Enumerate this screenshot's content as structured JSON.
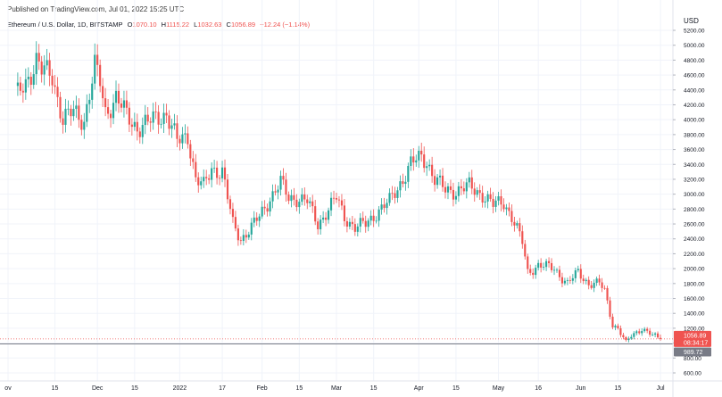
{
  "header": {
    "published": "Published on TradingView.com, Jul 01, 2022 15:25 UTC",
    "symbol": "Ethereum / U.S. Dollar, 1D, BITSTAMP",
    "open_label": "O",
    "open_value": "1070.10",
    "high_label": "H",
    "high_value": "1115.22",
    "low_label": "L",
    "low_value": "1032.63",
    "close_label": "C",
    "close_value": "1056.89",
    "change": "−12.24 (−1.14%)"
  },
  "price_scale": {
    "currency": "USD",
    "last_price": "1056.89",
    "countdown": "08:34:17",
    "line_price": "989.72",
    "ticks": [
      "5200.00",
      "5000.00",
      "4800.00",
      "4600.00",
      "4400.00",
      "4200.00",
      "4000.00",
      "3800.00",
      "3600.00",
      "3400.00",
      "3200.00",
      "3000.00",
      "2800.00",
      "2600.00",
      "2400.00",
      "2200.00",
      "2000.00",
      "1800.00",
      "1600.00",
      "1400.00",
      "1200.00",
      "1000.00",
      "800.00",
      "600.00"
    ]
  },
  "time_scale": {
    "labels": [
      "ov",
      "15",
      "Dec",
      "15",
      "2022",
      "17",
      "Feb",
      "15",
      "Mar",
      "15",
      "Apr",
      "15",
      "May",
      "16",
      "Jun",
      "15",
      "Jul"
    ]
  },
  "colors": {
    "up": "#26a69a",
    "down": "#ef5350",
    "grid": "#f0f3fa",
    "hline": "#787b86"
  },
  "chart_data": {
    "type": "candlestick",
    "title": "",
    "xlabel": "",
    "ylabel": "",
    "y_unit": "USD",
    "ylim": [
      600,
      5200
    ],
    "x_range": [
      "2021-11-01",
      "2022-07-01"
    ],
    "grid": true,
    "horizontal_line": 989.72,
    "last_candle": {
      "date": "2022-07-01",
      "open": 1070.1,
      "high": 1115.22,
      "low": 1032.63,
      "close": 1056.89
    },
    "close_series": [
      [
        "2021-11-01",
        4320
      ],
      [
        "2021-11-04",
        4500
      ],
      [
        "2021-11-08",
        4800
      ],
      [
        "2021-11-10",
        4650
      ],
      [
        "2021-11-14",
        4600
      ],
      [
        "2021-11-18",
        4000
      ],
      [
        "2021-11-22",
        4100
      ],
      [
        "2021-11-26",
        4000
      ],
      [
        "2021-11-30",
        4700
      ],
      [
        "2021-12-02",
        4500
      ],
      [
        "2021-12-04",
        4100
      ],
      [
        "2021-12-08",
        4300
      ],
      [
        "2021-12-12",
        4050
      ],
      [
        "2021-12-16",
        3900
      ],
      [
        "2021-12-20",
        3950
      ],
      [
        "2021-12-24",
        4050
      ],
      [
        "2021-12-27",
        4080
      ],
      [
        "2021-12-31",
        3700
      ],
      [
        "2022-01-04",
        3800
      ],
      [
        "2022-01-07",
        3200
      ],
      [
        "2022-01-10",
        3100
      ],
      [
        "2022-01-13",
        3350
      ],
      [
        "2022-01-17",
        3300
      ],
      [
        "2022-01-21",
        2600
      ],
      [
        "2022-01-24",
        2400
      ],
      [
        "2022-01-28",
        2550
      ],
      [
        "2022-01-31",
        2700
      ],
      [
        "2022-02-04",
        2950
      ],
      [
        "2022-02-08",
        3150
      ],
      [
        "2022-02-11",
        2950
      ],
      [
        "2022-02-14",
        2950
      ],
      [
        "2022-02-18",
        2900
      ],
      [
        "2022-02-22",
        2600
      ],
      [
        "2022-02-25",
        2750
      ],
      [
        "2022-03-01",
        2950
      ],
      [
        "2022-03-04",
        2700
      ],
      [
        "2022-03-08",
        2550
      ],
      [
        "2022-03-12",
        2600
      ],
      [
        "2022-03-16",
        2750
      ],
      [
        "2022-03-21",
        2900
      ],
      [
        "2022-03-25",
        3150
      ],
      [
        "2022-03-29",
        3400
      ],
      [
        "2022-04-02",
        3500
      ],
      [
        "2022-04-04",
        3450
      ],
      [
        "2022-04-07",
        3200
      ],
      [
        "2022-04-11",
        3050
      ],
      [
        "2022-04-15",
        3050
      ],
      [
        "2022-04-20",
        3100
      ],
      [
        "2022-04-25",
        3000
      ],
      [
        "2022-04-29",
        2850
      ],
      [
        "2022-05-03",
        2900
      ],
      [
        "2022-05-06",
        2700
      ],
      [
        "2022-05-10",
        2350
      ],
      [
        "2022-05-12",
        1950
      ],
      [
        "2022-05-16",
        2050
      ],
      [
        "2022-05-22",
        2000
      ],
      [
        "2022-05-27",
        1800
      ],
      [
        "2022-05-31",
        1950
      ],
      [
        "2022-06-04",
        1800
      ],
      [
        "2022-06-08",
        1800
      ],
      [
        "2022-06-10",
        1700
      ],
      [
        "2022-06-13",
        1250
      ],
      [
        "2022-06-15",
        1200
      ],
      [
        "2022-06-18",
        1000
      ],
      [
        "2022-06-20",
        1100
      ],
      [
        "2022-06-24",
        1200
      ],
      [
        "2022-06-26",
        1150
      ],
      [
        "2022-06-28",
        1100
      ],
      [
        "2022-07-01",
        1056.89
      ]
    ]
  }
}
